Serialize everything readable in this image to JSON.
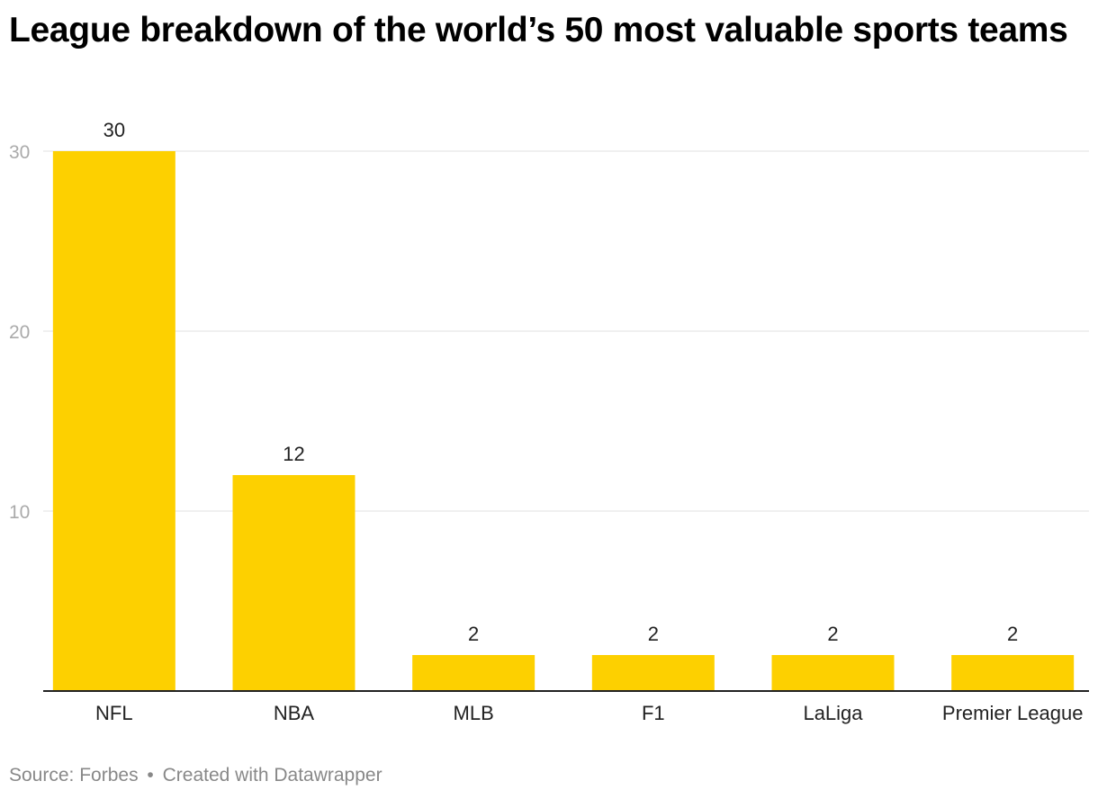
{
  "title": "League breakdown of the world’s 50 most valuable sports teams",
  "footer": {
    "source": "Source: Forbes",
    "separator": "•",
    "credit": "Created with Datawrapper"
  },
  "colors": {
    "bar": "#fdd000",
    "grid": "#e0e0e0",
    "axis": "#222222",
    "tick": "#aaaaaa",
    "label": "#222222"
  },
  "chart_data": {
    "type": "bar",
    "title": "League breakdown of the world’s 50 most valuable sports teams",
    "xlabel": "",
    "ylabel": "",
    "categories": [
      "NFL",
      "NBA",
      "MLB",
      "F1",
      "LaLiga",
      "Premier League"
    ],
    "values": [
      30,
      12,
      2,
      2,
      2,
      2
    ],
    "data_labels": [
      "30",
      "12",
      "2",
      "2",
      "2",
      "2"
    ],
    "ylim": [
      0,
      30
    ],
    "yticks": [
      10,
      20,
      30
    ],
    "grid": true,
    "legend": "none"
  }
}
